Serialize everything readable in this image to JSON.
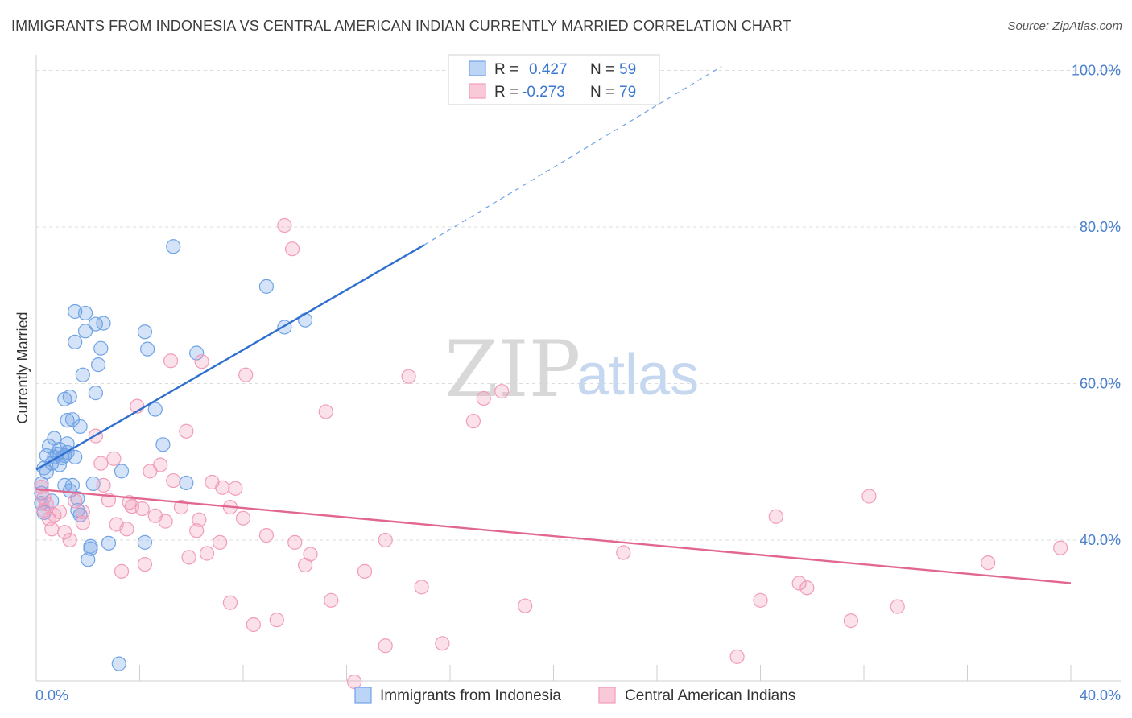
{
  "header": {
    "title": "IMMIGRANTS FROM INDONESIA VS CENTRAL AMERICAN INDIAN CURRENTLY MARRIED CORRELATION CHART",
    "source": "Source: ZipAtlas.com"
  },
  "watermark": {
    "zip": "ZIP",
    "atlas": "atlas"
  },
  "colors": {
    "blue": "#6fa3e6",
    "blue_line": "#2e6fd0",
    "pink": "#f19dba",
    "pink_line": "#e2678f",
    "axis_text": "#4a7fd0",
    "grid": "#dddddd"
  },
  "legend": {
    "r_label": "R =",
    "n_label": "N =",
    "rows": [
      {
        "r": "0.427",
        "n": "59"
      },
      {
        "r": "-0.273",
        "n": "79"
      }
    ]
  },
  "bottom_legend": {
    "items": [
      "Immigrants from Indonesia",
      "Central American Indians"
    ]
  },
  "chart_data": {
    "type": "scatter",
    "title": "IMMIGRANTS FROM INDONESIA VS CENTRAL AMERICAN INDIAN CURRENTLY MARRIED CORRELATION CHART",
    "xlabel": "",
    "ylabel": "Currently Married",
    "xlim": [
      0,
      40
    ],
    "ylim": [
      22,
      102
    ],
    "x_tick_labels": [
      "0.0%",
      "40.0%"
    ],
    "y_tick_values": [
      40,
      60,
      80,
      100
    ],
    "y_tick_labels": [
      "40.0%",
      "60.0%",
      "80.0%",
      "100.0%"
    ],
    "grid": true,
    "legend_position": "top-center",
    "series": [
      {
        "name": "Immigrants from Indonesia",
        "r": 0.427,
        "n": 59,
        "trend": {
          "x0": 0,
          "y0": 49.0,
          "x1": 15.0,
          "y1": 77.7,
          "dash_to_x": 26.5,
          "dash_to_y": 100.5
        },
        "points": [
          [
            0.2,
            44.7
          ],
          [
            0.2,
            46.0
          ],
          [
            0.2,
            47.2
          ],
          [
            0.3,
            49.2
          ],
          [
            0.4,
            50.8
          ],
          [
            0.5,
            52.0
          ],
          [
            0.6,
            49.8
          ],
          [
            0.7,
            50.6
          ],
          [
            0.8,
            51.0
          ],
          [
            0.9,
            49.6
          ],
          [
            1.0,
            50.5
          ],
          [
            1.2,
            52.3
          ],
          [
            1.1,
            47.0
          ],
          [
            1.3,
            46.3
          ],
          [
            1.1,
            50.8
          ],
          [
            1.2,
            51.2
          ],
          [
            1.5,
            50.6
          ],
          [
            1.4,
            47.0
          ],
          [
            1.1,
            58.0
          ],
          [
            1.3,
            58.3
          ],
          [
            1.2,
            55.3
          ],
          [
            1.4,
            55.4
          ],
          [
            1.7,
            54.5
          ],
          [
            1.5,
            65.3
          ],
          [
            1.5,
            69.2
          ],
          [
            1.9,
            69.0
          ],
          [
            1.9,
            66.7
          ],
          [
            1.8,
            61.1
          ],
          [
            2.3,
            67.6
          ],
          [
            2.6,
            67.7
          ],
          [
            2.4,
            62.4
          ],
          [
            2.5,
            64.5
          ],
          [
            2.3,
            58.8
          ],
          [
            2.2,
            47.2
          ],
          [
            1.6,
            45.3
          ],
          [
            1.6,
            43.8
          ],
          [
            1.7,
            43.2
          ],
          [
            2.1,
            39.2
          ],
          [
            2.1,
            38.9
          ],
          [
            2.0,
            37.5
          ],
          [
            2.8,
            39.6
          ],
          [
            3.3,
            48.8
          ],
          [
            4.2,
            66.6
          ],
          [
            4.3,
            64.4
          ],
          [
            4.6,
            56.7
          ],
          [
            4.9,
            52.2
          ],
          [
            5.3,
            77.5
          ],
          [
            5.8,
            47.3
          ],
          [
            6.2,
            63.9
          ],
          [
            8.9,
            72.4
          ],
          [
            9.6,
            67.2
          ],
          [
            10.4,
            68.1
          ],
          [
            4.2,
            39.7
          ],
          [
            3.2,
            24.2
          ],
          [
            0.3,
            43.5
          ],
          [
            0.6,
            45.0
          ],
          [
            0.4,
            48.7
          ],
          [
            0.9,
            51.6
          ],
          [
            0.7,
            53.0
          ]
        ]
      },
      {
        "name": "Central American Indians",
        "r": -0.273,
        "n": 79,
        "trend": {
          "x0": 0,
          "y0": 46.5,
          "x1": 40,
          "y1": 34.5
        },
        "points": [
          [
            0.2,
            46.8
          ],
          [
            0.3,
            45.4
          ],
          [
            0.4,
            44.6
          ],
          [
            0.3,
            43.8
          ],
          [
            0.5,
            42.7
          ],
          [
            0.6,
            41.4
          ],
          [
            0.7,
            43.2
          ],
          [
            0.9,
            43.6
          ],
          [
            1.1,
            41.0
          ],
          [
            1.3,
            40.0
          ],
          [
            1.5,
            45.0
          ],
          [
            1.8,
            42.2
          ],
          [
            1.8,
            43.6
          ],
          [
            2.3,
            53.3
          ],
          [
            2.5,
            49.8
          ],
          [
            2.6,
            47.0
          ],
          [
            2.8,
            45.1
          ],
          [
            3.0,
            50.4
          ],
          [
            3.1,
            42.0
          ],
          [
            3.3,
            36.0
          ],
          [
            3.5,
            41.4
          ],
          [
            3.6,
            44.8
          ],
          [
            3.7,
            44.3
          ],
          [
            3.9,
            57.1
          ],
          [
            4.1,
            44.0
          ],
          [
            4.2,
            36.9
          ],
          [
            4.4,
            48.8
          ],
          [
            4.6,
            43.1
          ],
          [
            4.8,
            49.6
          ],
          [
            5.0,
            42.4
          ],
          [
            5.2,
            62.9
          ],
          [
            5.3,
            47.6
          ],
          [
            5.6,
            44.2
          ],
          [
            5.8,
            53.9
          ],
          [
            5.9,
            37.8
          ],
          [
            6.2,
            41.2
          ],
          [
            6.4,
            62.8
          ],
          [
            6.3,
            42.6
          ],
          [
            6.6,
            38.3
          ],
          [
            6.8,
            47.4
          ],
          [
            7.1,
            39.7
          ],
          [
            7.2,
            46.7
          ],
          [
            7.5,
            44.2
          ],
          [
            7.7,
            46.6
          ],
          [
            7.5,
            32.0
          ],
          [
            8.0,
            42.8
          ],
          [
            8.1,
            61.1
          ],
          [
            8.4,
            29.2
          ],
          [
            8.9,
            40.6
          ],
          [
            9.3,
            29.8
          ],
          [
            9.6,
            80.2
          ],
          [
            9.9,
            77.2
          ],
          [
            10.0,
            39.7
          ],
          [
            10.4,
            36.8
          ],
          [
            10.6,
            38.2
          ],
          [
            11.2,
            56.4
          ],
          [
            11.4,
            32.3
          ],
          [
            12.3,
            21.9
          ],
          [
            12.7,
            36.0
          ],
          [
            13.5,
            40.0
          ],
          [
            13.5,
            26.5
          ],
          [
            14.4,
            60.9
          ],
          [
            14.9,
            34.0
          ],
          [
            15.7,
            26.8
          ],
          [
            16.9,
            55.2
          ],
          [
            17.3,
            58.1
          ],
          [
            18.0,
            59.0
          ],
          [
            18.9,
            31.6
          ],
          [
            22.7,
            38.4
          ],
          [
            27.1,
            25.1
          ],
          [
            28.0,
            32.3
          ],
          [
            28.6,
            43.0
          ],
          [
            29.5,
            34.5
          ],
          [
            29.8,
            33.9
          ],
          [
            31.5,
            29.7
          ],
          [
            32.2,
            45.6
          ],
          [
            33.3,
            31.5
          ],
          [
            36.8,
            37.1
          ],
          [
            39.6,
            39.0
          ]
        ]
      }
    ]
  }
}
